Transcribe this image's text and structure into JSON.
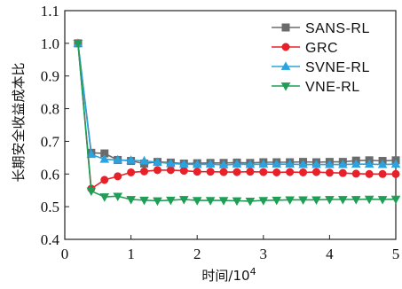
{
  "chart_data": {
    "type": "line",
    "title": "",
    "xlabel": "时间/10",
    "xlabel_sup": "4",
    "ylabel": "长期安全收益成本比",
    "xlim": [
      0,
      5
    ],
    "ylim": [
      0.4,
      1.1
    ],
    "xticks": [
      0,
      1,
      2,
      3,
      4,
      5
    ],
    "xtick_labels": [
      "0",
      "1",
      "2",
      "3",
      "4",
      "5"
    ],
    "yticks": [
      0.4,
      0.5,
      0.6,
      0.7,
      0.8,
      0.9,
      1.0,
      1.1
    ],
    "ytick_labels": [
      "0.4",
      "0.5",
      "0.6",
      "0.7",
      "0.8",
      "0.9",
      "1.0",
      "1.1"
    ],
    "grid": false,
    "legend_position": "top-right",
    "x": [
      0.2,
      0.4,
      0.6,
      0.8,
      1.0,
      1.2,
      1.4,
      1.6,
      1.8,
      2.0,
      2.2,
      2.4,
      2.6,
      2.8,
      3.0,
      3.2,
      3.4,
      3.6,
      3.8,
      4.0,
      4.2,
      4.4,
      4.6,
      4.8,
      5.0
    ],
    "series": [
      {
        "name": "SANS-RL",
        "color": "#6b6b6b",
        "marker": "square",
        "values": [
          1.0,
          0.665,
          0.663,
          0.643,
          0.64,
          0.632,
          0.637,
          0.635,
          0.632,
          0.633,
          0.634,
          0.634,
          0.635,
          0.634,
          0.636,
          0.636,
          0.636,
          0.637,
          0.636,
          0.637,
          0.637,
          0.641,
          0.642,
          0.64,
          0.642
        ]
      },
      {
        "name": "GRC",
        "color": "#e8202a",
        "marker": "circle",
        "values": [
          1.0,
          0.555,
          0.582,
          0.593,
          0.605,
          0.608,
          0.612,
          0.612,
          0.61,
          0.607,
          0.607,
          0.606,
          0.606,
          0.607,
          0.606,
          0.605,
          0.606,
          0.605,
          0.606,
          0.604,
          0.603,
          0.601,
          0.6,
          0.6,
          0.6
        ]
      },
      {
        "name": "SVNE-RL",
        "color": "#2aa3df",
        "marker": "triangle-up",
        "values": [
          1.0,
          0.66,
          0.645,
          0.643,
          0.642,
          0.64,
          0.636,
          0.632,
          0.63,
          0.629,
          0.63,
          0.628,
          0.63,
          0.629,
          0.63,
          0.63,
          0.63,
          0.629,
          0.629,
          0.629,
          0.629,
          0.63,
          0.63,
          0.629,
          0.63
        ]
      },
      {
        "name": "VNE-RL",
        "color": "#1f9e55",
        "marker": "triangle-down",
        "values": [
          1.0,
          0.548,
          0.53,
          0.532,
          0.522,
          0.52,
          0.518,
          0.52,
          0.522,
          0.519,
          0.519,
          0.519,
          0.518,
          0.517,
          0.519,
          0.52,
          0.521,
          0.521,
          0.521,
          0.522,
          0.522,
          0.522,
          0.523,
          0.522,
          0.523
        ]
      }
    ]
  }
}
